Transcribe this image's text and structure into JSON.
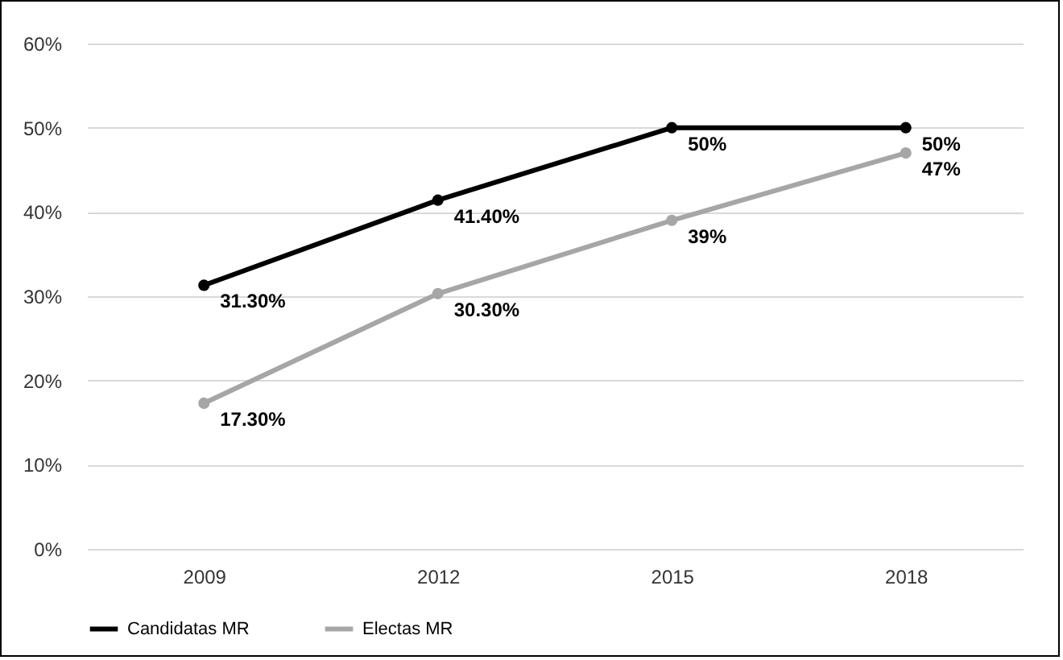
{
  "chart_data": {
    "type": "line",
    "categories": [
      "2009",
      "2012",
      "2015",
      "2018"
    ],
    "series": [
      {
        "name": "Candidatas MR",
        "color": "#000000",
        "values": [
          31.3,
          41.4,
          50,
          50
        ],
        "value_labels": [
          "31.30%",
          "41.40%",
          "50%",
          "50%"
        ]
      },
      {
        "name": "Electas MR",
        "color": "#a6a6a6",
        "values": [
          17.3,
          30.3,
          39,
          47
        ],
        "value_labels": [
          "17.30%",
          "30.30%",
          "39%",
          "47%"
        ]
      }
    ],
    "ylim": [
      0,
      60
    ],
    "yticks": [
      {
        "value": 0,
        "label": "0%"
      },
      {
        "value": 10,
        "label": "10%"
      },
      {
        "value": 20,
        "label": "20%"
      },
      {
        "value": 30,
        "label": "30%"
      },
      {
        "value": 40,
        "label": "40%"
      },
      {
        "value": 50,
        "label": "50%"
      },
      {
        "value": 60,
        "label": "60%"
      }
    ],
    "grid": "y",
    "legend": "bottom",
    "marker": "circle",
    "line_style": "solid"
  }
}
